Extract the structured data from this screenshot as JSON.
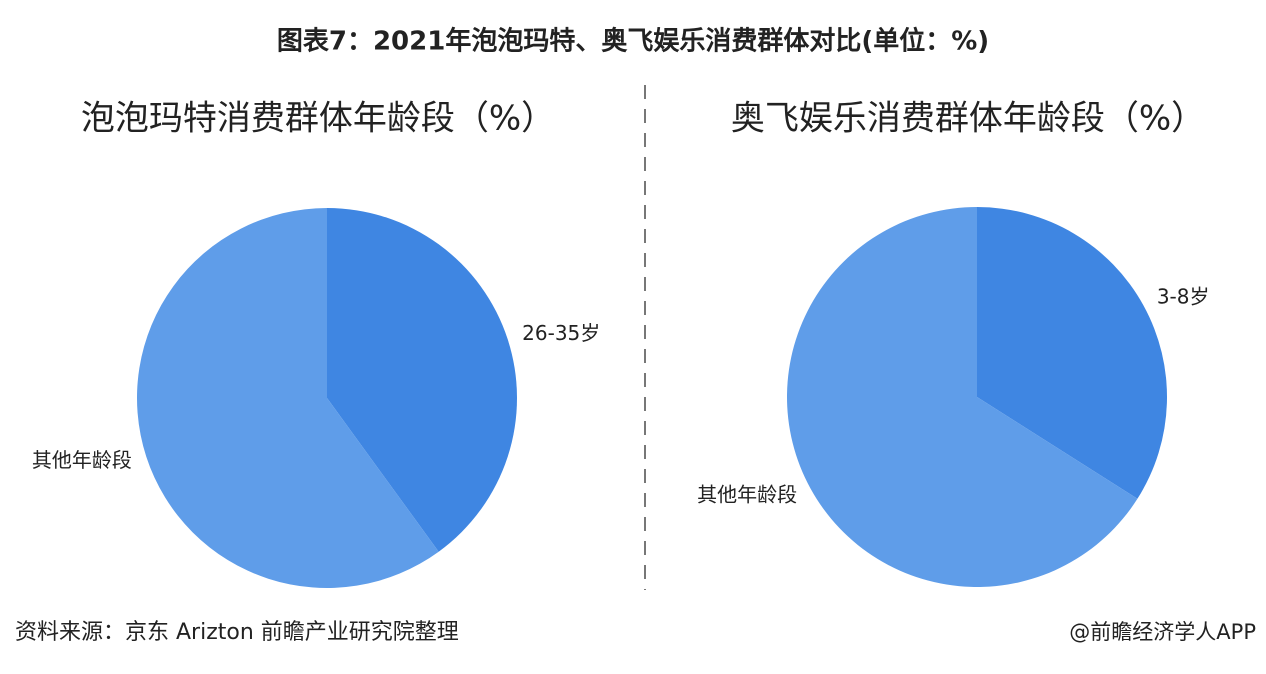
{
  "header": {
    "title": "图表7：2021年泡泡玛特、奥飞娱乐消费群体对比(单位：%)"
  },
  "chart_data": [
    {
      "type": "pie",
      "title": "泡泡玛特消费群体年龄段（%）",
      "categories": [
        "26-35岁",
        "其他年龄段"
      ],
      "values": [
        40,
        60
      ],
      "colors": [
        "#3f86e2",
        "#5f9de9"
      ]
    },
    {
      "type": "pie",
      "title": "奥飞娱乐消费群体年龄段（%）",
      "categories": [
        "3-8岁",
        "其他年龄段"
      ],
      "values": [
        34,
        66
      ],
      "colors": [
        "#3f86e2",
        "#5f9de9"
      ]
    }
  ],
  "footer": {
    "source": "资料来源：京东 Arizton 前瞻产业研究院整理",
    "credit": "@前瞻经济学人APP"
  }
}
